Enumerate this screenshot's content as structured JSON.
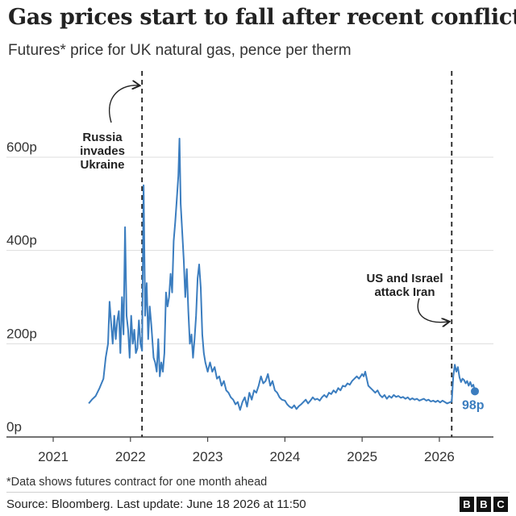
{
  "title": "Gas prices start to fall after recent conflicts",
  "subtitle": "Futures* price for UK natural gas, pence per therm",
  "footnote": "*Data shows futures contract for one month ahead",
  "source": "Source: Bloomberg. Last update: June 18 2026 at 11:50",
  "logo": [
    "B",
    "B",
    "C"
  ],
  "chart_data": {
    "type": "line",
    "line_color": "#3b7dbf",
    "grid": true,
    "xlim": [
      2021.0,
      2026.7
    ],
    "ylim": [
      0,
      640
    ],
    "x_ticks": [
      2021,
      2022,
      2023,
      2024,
      2025,
      2026
    ],
    "x_tick_labels": [
      "2021",
      "2022",
      "2023",
      "2024",
      "2025",
      "2026"
    ],
    "y_ticks": [
      0,
      200,
      400,
      600
    ],
    "y_tick_labels": [
      "0p",
      "200p",
      "400p",
      "600p"
    ],
    "series": [
      {
        "points": [
          [
            2021.46,
            72
          ],
          [
            2021.5,
            80
          ],
          [
            2021.55,
            88
          ],
          [
            2021.6,
            105
          ],
          [
            2021.65,
            125
          ],
          [
            2021.68,
            170
          ],
          [
            2021.71,
            200
          ],
          [
            2021.73,
            290
          ],
          [
            2021.75,
            245
          ],
          [
            2021.77,
            200
          ],
          [
            2021.79,
            260
          ],
          [
            2021.81,
            210
          ],
          [
            2021.83,
            250
          ],
          [
            2021.85,
            270
          ],
          [
            2021.87,
            180
          ],
          [
            2021.89,
            300
          ],
          [
            2021.91,
            220
          ],
          [
            2021.93,
            450
          ],
          [
            2021.95,
            260
          ],
          [
            2021.97,
            230
          ],
          [
            2021.99,
            170
          ],
          [
            2022.01,
            260
          ],
          [
            2022.03,
            200
          ],
          [
            2022.05,
            230
          ],
          [
            2022.07,
            180
          ],
          [
            2022.09,
            190
          ],
          [
            2022.11,
            250
          ],
          [
            2022.13,
            200
          ],
          [
            2022.15,
            185
          ],
          [
            2022.17,
            540
          ],
          [
            2022.19,
            260
          ],
          [
            2022.21,
            330
          ],
          [
            2022.23,
            210
          ],
          [
            2022.25,
            280
          ],
          [
            2022.27,
            240
          ],
          [
            2022.3,
            170
          ],
          [
            2022.32,
            160
          ],
          [
            2022.34,
            140
          ],
          [
            2022.36,
            210
          ],
          [
            2022.38,
            130
          ],
          [
            2022.4,
            160
          ],
          [
            2022.42,
            140
          ],
          [
            2022.44,
            180
          ],
          [
            2022.46,
            310
          ],
          [
            2022.48,
            280
          ],
          [
            2022.5,
            300
          ],
          [
            2022.52,
            350
          ],
          [
            2022.54,
            310
          ],
          [
            2022.56,
            420
          ],
          [
            2022.58,
            460
          ],
          [
            2022.6,
            510
          ],
          [
            2022.62,
            560
          ],
          [
            2022.635,
            640
          ],
          [
            2022.65,
            500
          ],
          [
            2022.67,
            440
          ],
          [
            2022.69,
            380
          ],
          [
            2022.71,
            300
          ],
          [
            2022.73,
            360
          ],
          [
            2022.75,
            270
          ],
          [
            2022.77,
            200
          ],
          [
            2022.79,
            220
          ],
          [
            2022.81,
            170
          ],
          [
            2022.83,
            210
          ],
          [
            2022.85,
            260
          ],
          [
            2022.87,
            340
          ],
          [
            2022.89,
            370
          ],
          [
            2022.91,
            320
          ],
          [
            2022.93,
            220
          ],
          [
            2022.95,
            180
          ],
          [
            2022.97,
            160
          ],
          [
            2023.0,
            140
          ],
          [
            2023.03,
            160
          ],
          [
            2023.06,
            140
          ],
          [
            2023.09,
            150
          ],
          [
            2023.12,
            125
          ],
          [
            2023.15,
            130
          ],
          [
            2023.18,
            110
          ],
          [
            2023.21,
            120
          ],
          [
            2023.24,
            100
          ],
          [
            2023.27,
            95
          ],
          [
            2023.3,
            85
          ],
          [
            2023.33,
            80
          ],
          [
            2023.36,
            70
          ],
          [
            2023.39,
            75
          ],
          [
            2023.42,
            58
          ],
          [
            2023.45,
            75
          ],
          [
            2023.48,
            85
          ],
          [
            2023.51,
            65
          ],
          [
            2023.54,
            95
          ],
          [
            2023.57,
            80
          ],
          [
            2023.6,
            100
          ],
          [
            2023.63,
            95
          ],
          [
            2023.66,
            110
          ],
          [
            2023.69,
            130
          ],
          [
            2023.72,
            115
          ],
          [
            2023.75,
            120
          ],
          [
            2023.78,
            135
          ],
          [
            2023.81,
            110
          ],
          [
            2023.84,
            120
          ],
          [
            2023.87,
            100
          ],
          [
            2023.9,
            95
          ],
          [
            2023.93,
            85
          ],
          [
            2023.96,
            80
          ],
          [
            2024.0,
            78
          ],
          [
            2024.03,
            70
          ],
          [
            2024.06,
            65
          ],
          [
            2024.09,
            62
          ],
          [
            2024.12,
            68
          ],
          [
            2024.15,
            60
          ],
          [
            2024.18,
            66
          ],
          [
            2024.21,
            70
          ],
          [
            2024.24,
            75
          ],
          [
            2024.27,
            80
          ],
          [
            2024.3,
            72
          ],
          [
            2024.33,
            78
          ],
          [
            2024.36,
            85
          ],
          [
            2024.39,
            80
          ],
          [
            2024.42,
            82
          ],
          [
            2024.45,
            78
          ],
          [
            2024.48,
            85
          ],
          [
            2024.51,
            90
          ],
          [
            2024.54,
            85
          ],
          [
            2024.57,
            95
          ],
          [
            2024.6,
            92
          ],
          [
            2024.63,
            100
          ],
          [
            2024.66,
            95
          ],
          [
            2024.69,
            105
          ],
          [
            2024.72,
            100
          ],
          [
            2024.75,
            110
          ],
          [
            2024.78,
            108
          ],
          [
            2024.81,
            115
          ],
          [
            2024.84,
            112
          ],
          [
            2024.87,
            120
          ],
          [
            2024.9,
            125
          ],
          [
            2024.93,
            130
          ],
          [
            2024.96,
            125
          ],
          [
            2025.0,
            135
          ],
          [
            2025.02,
            130
          ],
          [
            2025.04,
            140
          ],
          [
            2025.06,
            125
          ],
          [
            2025.08,
            110
          ],
          [
            2025.11,
            105
          ],
          [
            2025.14,
            100
          ],
          [
            2025.17,
            95
          ],
          [
            2025.2,
            100
          ],
          [
            2025.23,
            90
          ],
          [
            2025.26,
            85
          ],
          [
            2025.29,
            90
          ],
          [
            2025.32,
            82
          ],
          [
            2025.35,
            88
          ],
          [
            2025.38,
            84
          ],
          [
            2025.41,
            90
          ],
          [
            2025.44,
            86
          ],
          [
            2025.47,
            88
          ],
          [
            2025.5,
            84
          ],
          [
            2025.53,
            86
          ],
          [
            2025.56,
            82
          ],
          [
            2025.59,
            85
          ],
          [
            2025.62,
            80
          ],
          [
            2025.65,
            83
          ],
          [
            2025.68,
            80
          ],
          [
            2025.71,
            82
          ],
          [
            2025.74,
            78
          ],
          [
            2025.77,
            80
          ],
          [
            2025.8,
            82
          ],
          [
            2025.83,
            78
          ],
          [
            2025.86,
            80
          ],
          [
            2025.89,
            76
          ],
          [
            2025.92,
            78
          ],
          [
            2025.95,
            75
          ],
          [
            2025.98,
            78
          ],
          [
            2026.01,
            74
          ],
          [
            2026.04,
            78
          ],
          [
            2026.07,
            75
          ],
          [
            2026.1,
            72
          ],
          [
            2026.13,
            74
          ],
          [
            2026.16,
            76
          ],
          [
            2026.18,
            130
          ],
          [
            2026.2,
            155
          ],
          [
            2026.22,
            140
          ],
          [
            2026.24,
            150
          ],
          [
            2026.26,
            128
          ],
          [
            2026.28,
            118
          ],
          [
            2026.3,
            125
          ],
          [
            2026.32,
            122
          ],
          [
            2026.34,
            115
          ],
          [
            2026.36,
            120
          ],
          [
            2026.38,
            110
          ],
          [
            2026.4,
            118
          ],
          [
            2026.42,
            108
          ],
          [
            2026.44,
            112
          ],
          [
            2026.46,
            98
          ]
        ],
        "end_label": "98p",
        "end_value": 98
      }
    ],
    "events": [
      {
        "x": 2022.15,
        "label_lines": [
          "Russia",
          "invades",
          "Ukraine"
        ]
      },
      {
        "x": 2026.16,
        "label_lines": [
          "US and Israel",
          "attack Iran"
        ]
      }
    ]
  }
}
